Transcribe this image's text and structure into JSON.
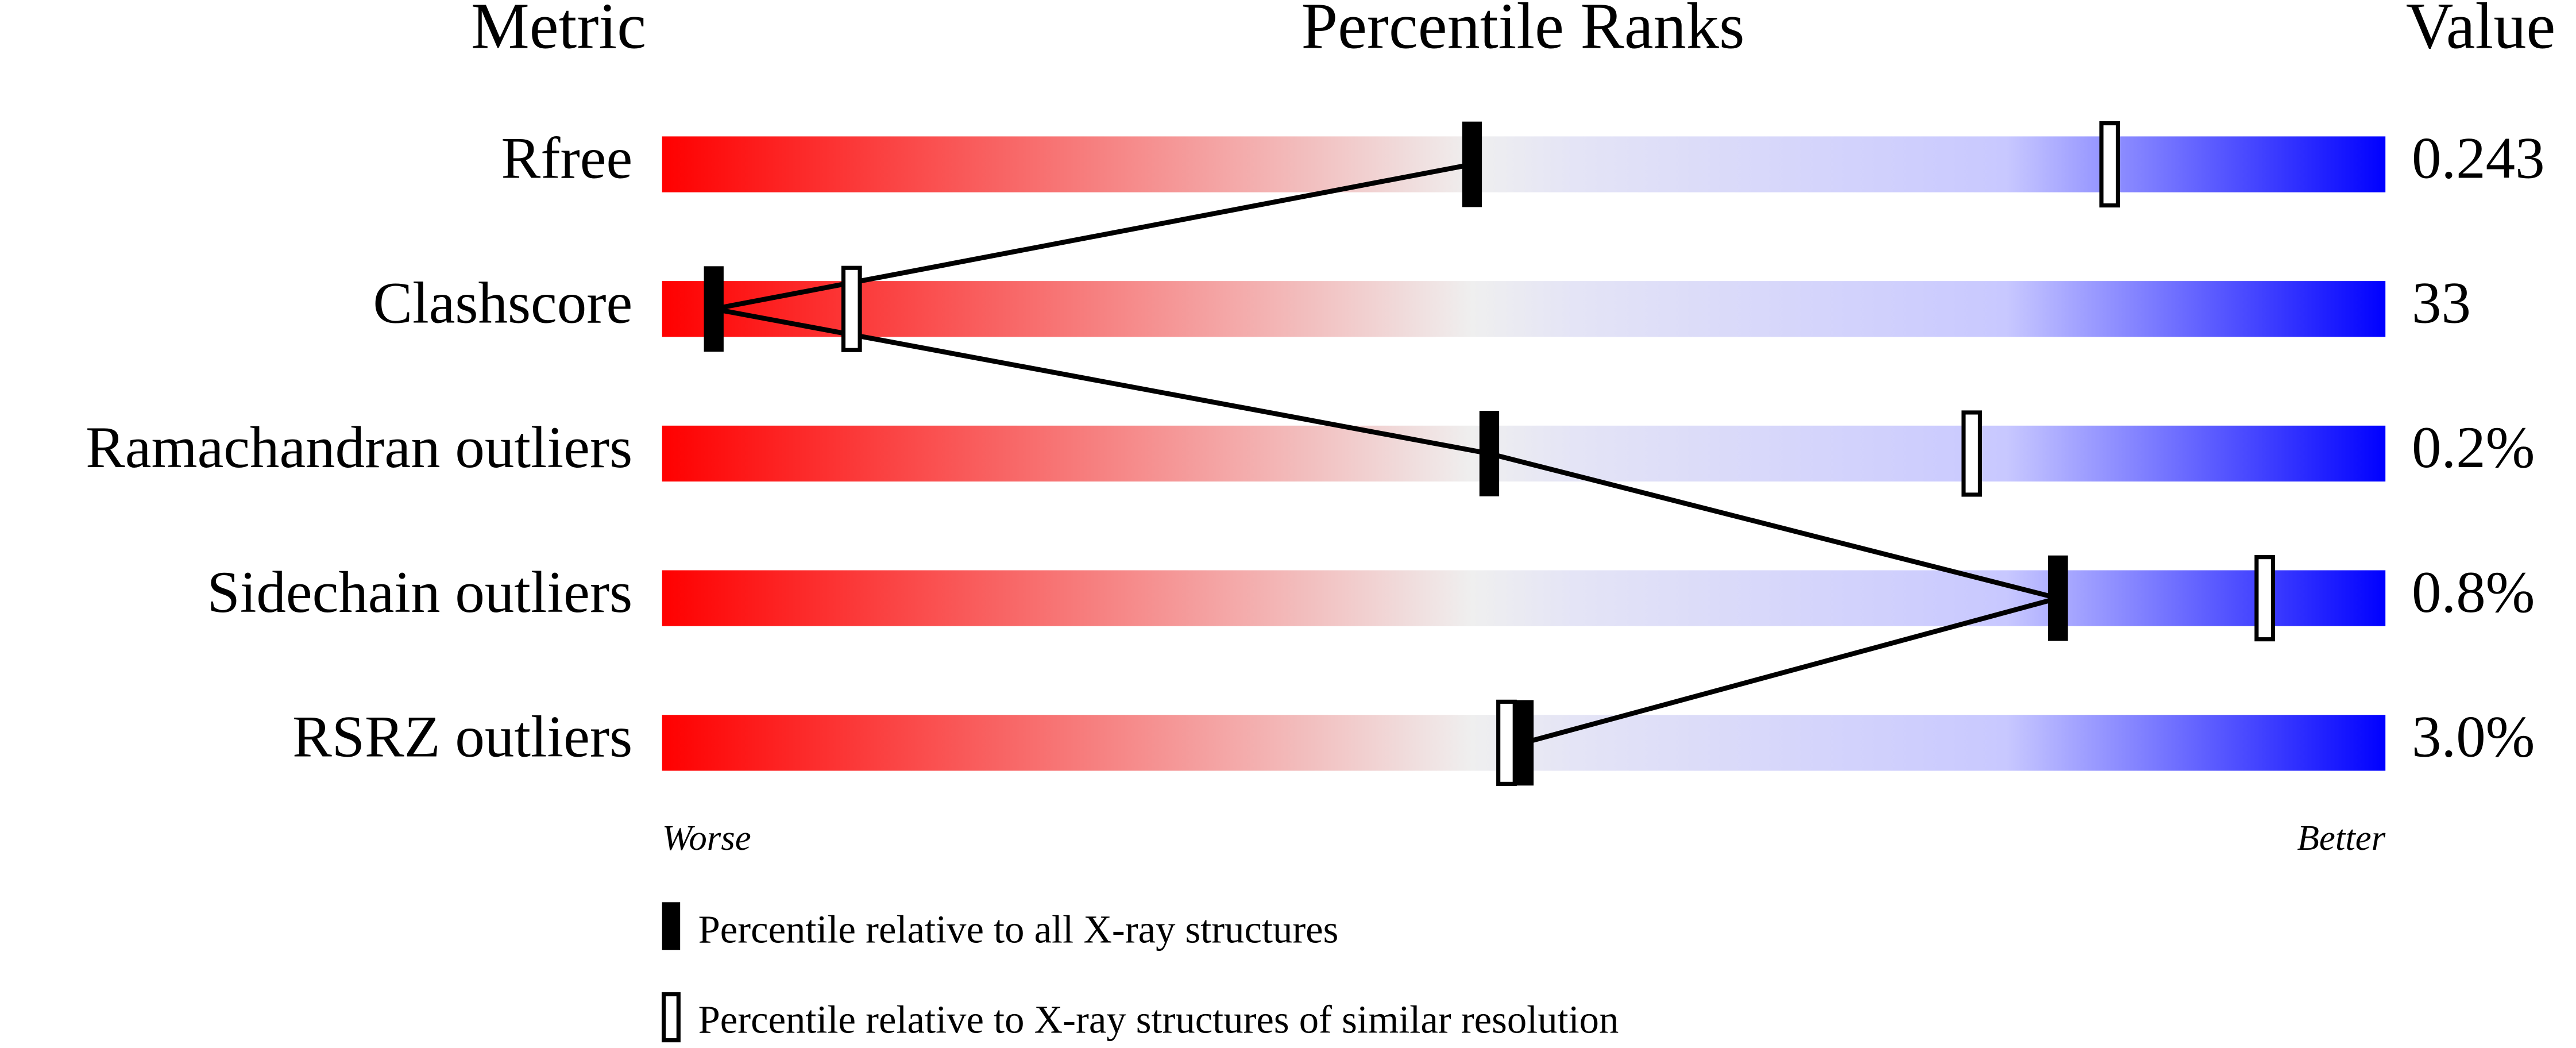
{
  "chart_data": {
    "type": "slider",
    "headers": [
      "Metric",
      "Percentile Ranks",
      "Value"
    ],
    "categories": [
      "Rfree",
      "Clashscore",
      "Ramachandran outliers",
      "Sidechain outliers",
      "RSRZ outliers"
    ],
    "metric_values": [
      "0.243",
      "33",
      "0.2%",
      "0.8%",
      "3.0%"
    ],
    "series": [
      {
        "name": "Percentile relative to all X-ray structures",
        "color": "#000000",
        "values": [
          47,
          3,
          48,
          81,
          50
        ]
      },
      {
        "name": "Percentile relative to X-ray structures of similar resolution",
        "color": "#000000",
        "values": [
          84,
          11,
          76,
          93,
          49
        ]
      }
    ],
    "xlim": [
      0,
      100
    ],
    "axis_labels": [
      "Worse",
      "Better"
    ]
  }
}
